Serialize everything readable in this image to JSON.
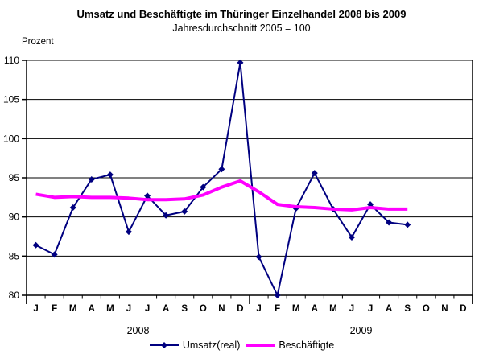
{
  "title": "Umsatz und Beschäftigte im Thüringer Einzelhandel 2008 bis 2009",
  "subtitle": "Jahresdurchschnitt 2005 = 100",
  "y_axis_unit": "Prozent",
  "legend": {
    "umsatz_label": "Umsatz(real)",
    "beschaeftigte_label": "Beschäftigte"
  },
  "colors": {
    "umsatz": "#000080",
    "beschaeftigte": "#FF00FF",
    "axis": "#000000",
    "background": "#FFFFFF"
  },
  "chart_data": {
    "type": "line",
    "title": "Umsatz und Beschäftigte im Thüringer Einzelhandel 2008 bis 2009",
    "subtitle": "Jahresdurchschnitt 2005 = 100",
    "xlabel": "",
    "ylabel": "Prozent",
    "ylim": [
      80,
      110
    ],
    "yticks": [
      80,
      85,
      90,
      95,
      100,
      105,
      110
    ],
    "grid": true,
    "legend_position": "bottom",
    "x_month_labels": [
      "J",
      "F",
      "M",
      "A",
      "M",
      "J",
      "J",
      "A",
      "S",
      "O",
      "N",
      "D",
      "J",
      "F",
      "M",
      "A",
      "M",
      "J",
      "J",
      "A",
      "S",
      "O",
      "N",
      "D"
    ],
    "year_labels": [
      {
        "label": "2008",
        "month_span": [
          0,
          11
        ]
      },
      {
        "label": "2009",
        "month_span": [
          12,
          23
        ]
      }
    ],
    "series": [
      {
        "name": "Umsatz(real)",
        "color": "#000080",
        "marker": "diamond",
        "line_width": 2,
        "values": [
          86.4,
          85.2,
          91.2,
          94.8,
          95.4,
          88.1,
          92.7,
          90.2,
          90.7,
          93.8,
          96.1,
          109.7,
          84.9,
          80.0,
          91.1,
          95.6,
          91.0,
          87.4,
          91.6,
          89.3,
          89.0,
          null,
          null,
          null
        ]
      },
      {
        "name": "Beschäftigte",
        "color": "#FF00FF",
        "marker": "none",
        "line_width": 4,
        "values": [
          92.9,
          92.5,
          92.6,
          92.5,
          92.5,
          92.4,
          92.2,
          92.2,
          92.3,
          92.8,
          93.8,
          94.6,
          93.2,
          91.6,
          91.3,
          91.2,
          91.0,
          90.9,
          91.2,
          91.0,
          91.0,
          null,
          null,
          null
        ]
      }
    ]
  }
}
